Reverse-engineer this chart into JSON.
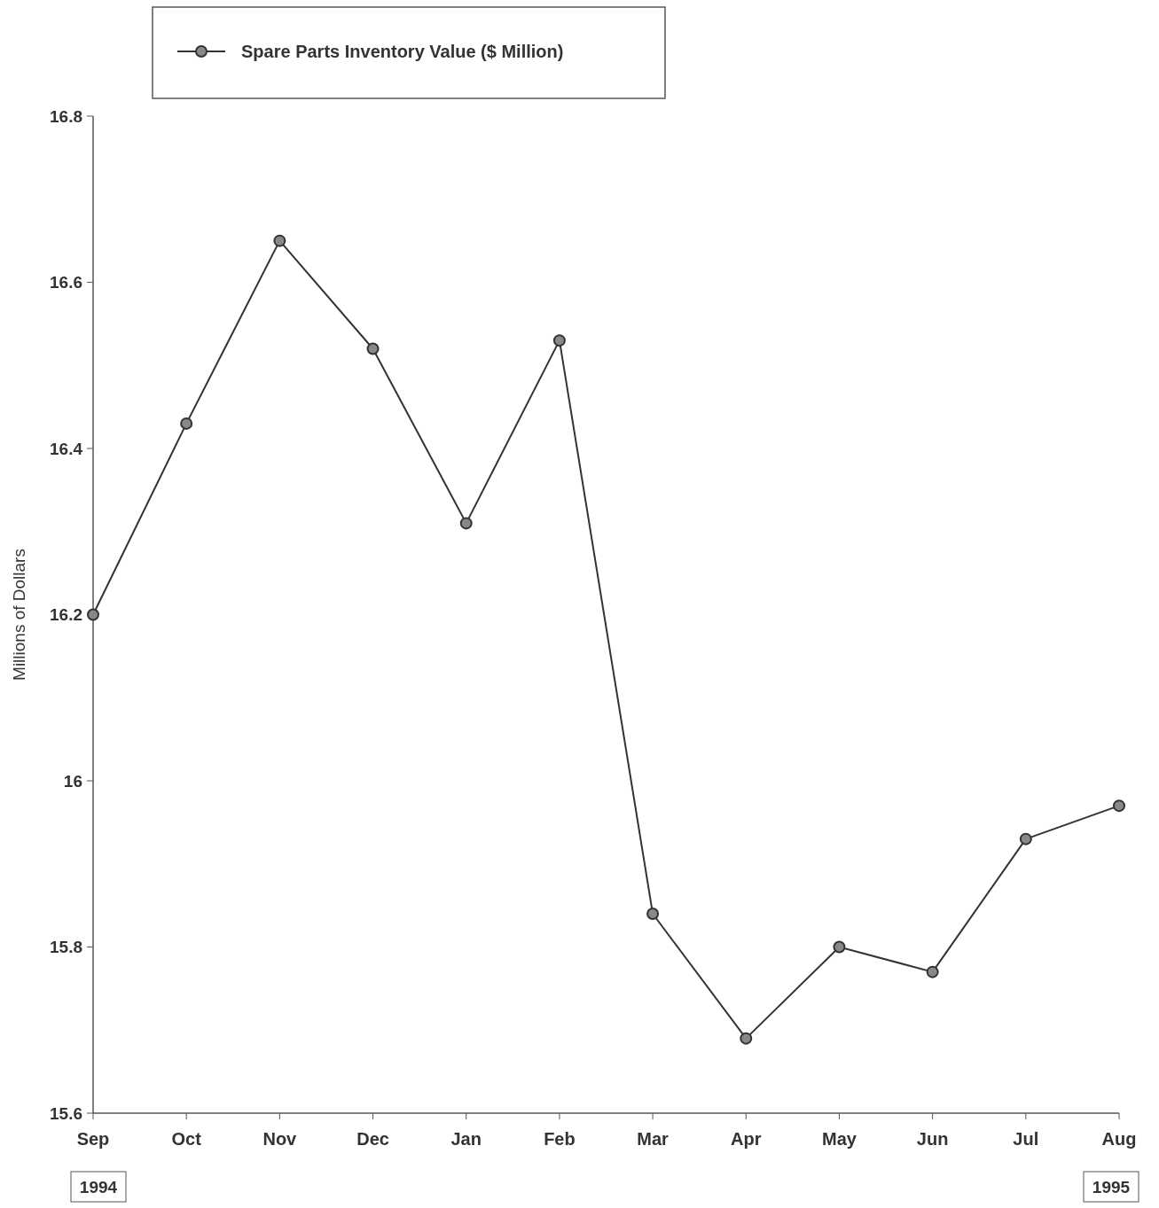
{
  "chart_data": {
    "type": "line",
    "ylabel": "Millions of Dollars",
    "categories": [
      "Sep",
      "Oct",
      "Nov",
      "Dec",
      "Jan",
      "Feb",
      "Mar",
      "Apr",
      "May",
      "Jun",
      "Jul",
      "Aug"
    ],
    "series": [
      {
        "name": "Spare Parts Inventory Value ($ Million)",
        "color": "#333333",
        "values": [
          16.2,
          16.43,
          16.65,
          16.52,
          16.31,
          16.53,
          15.84,
          15.69,
          15.8,
          15.77,
          15.93,
          15.97
        ]
      }
    ],
    "ylim": [
      15.6,
      16.8
    ],
    "yticks": [
      15.6,
      15.8,
      16,
      16.2,
      16.4,
      16.6,
      16.8
    ],
    "grid": false,
    "legend": "top left",
    "marker": "circle",
    "annotations": [
      "1994",
      "1995"
    ]
  }
}
